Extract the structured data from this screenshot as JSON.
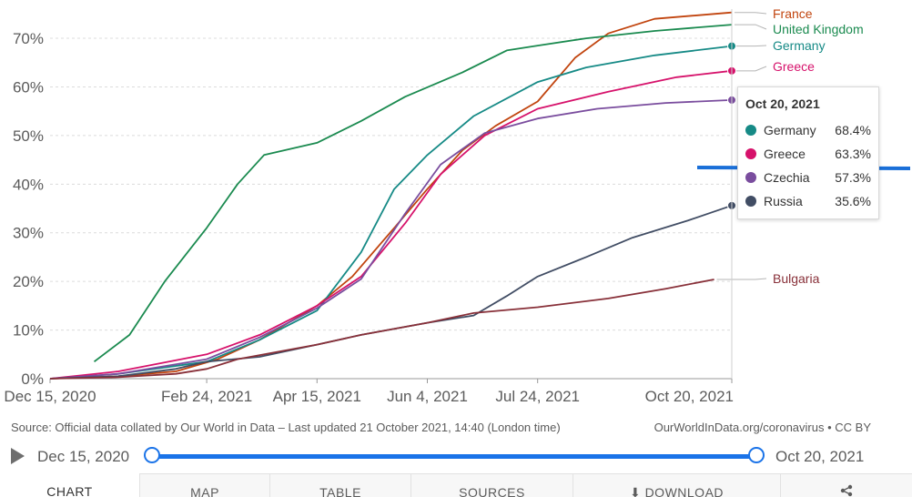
{
  "chart_data": {
    "type": "line",
    "y_ticks": [
      "0%",
      "10%",
      "20%",
      "30%",
      "40%",
      "50%",
      "60%",
      "70%"
    ],
    "x_ticks": [
      "Dec 15, 2020",
      "Feb 24, 2021",
      "Apr 15, 2021",
      "Jun 4, 2021",
      "Jul 24, 2021",
      "Oct 20, 2021"
    ],
    "ylim": [
      0,
      76
    ],
    "xlim": [
      "2020-12-15",
      "2021-10-20"
    ],
    "grid": "horizontal dashed",
    "series": [
      {
        "name": "France",
        "color": "#c1440e",
        "points": [
          [
            "2020-12-15",
            0
          ],
          [
            "2021-01-15",
            0.5
          ],
          [
            "2021-02-10",
            1.5
          ],
          [
            "2021-03-01",
            4
          ],
          [
            "2021-03-20",
            8
          ],
          [
            "2021-04-15",
            15
          ],
          [
            "2021-05-01",
            21
          ],
          [
            "2021-05-20",
            31
          ],
          [
            "2021-06-04",
            39
          ],
          [
            "2021-06-20",
            47
          ],
          [
            "2021-07-05",
            52
          ],
          [
            "2021-07-24",
            57
          ],
          [
            "2021-08-10",
            66
          ],
          [
            "2021-08-25",
            71
          ],
          [
            "2021-09-15",
            74
          ],
          [
            "2021-10-20",
            75.3
          ]
        ]
      },
      {
        "name": "United Kingdom",
        "color": "#1a8a4f",
        "points": [
          [
            "2021-01-04",
            3.5
          ],
          [
            "2021-01-20",
            9
          ],
          [
            "2021-02-05",
            20
          ],
          [
            "2021-02-24",
            31
          ],
          [
            "2021-03-10",
            40
          ],
          [
            "2021-03-22",
            46
          ],
          [
            "2021-04-15",
            48.5
          ],
          [
            "2021-05-05",
            53
          ],
          [
            "2021-05-25",
            58
          ],
          [
            "2021-06-20",
            63
          ],
          [
            "2021-07-10",
            67.5
          ],
          [
            "2021-07-24",
            68.5
          ],
          [
            "2021-08-15",
            70
          ],
          [
            "2021-09-15",
            71.5
          ],
          [
            "2021-10-20",
            72.8
          ]
        ]
      },
      {
        "name": "Germany",
        "color": "#168a86",
        "points": [
          [
            "2020-12-15",
            0
          ],
          [
            "2021-01-15",
            1
          ],
          [
            "2021-02-24",
            3.5
          ],
          [
            "2021-03-20",
            8
          ],
          [
            "2021-04-15",
            14
          ],
          [
            "2021-05-05",
            26
          ],
          [
            "2021-05-20",
            39
          ],
          [
            "2021-06-04",
            46
          ],
          [
            "2021-06-25",
            54
          ],
          [
            "2021-07-24",
            61
          ],
          [
            "2021-08-15",
            64
          ],
          [
            "2021-09-15",
            66.5
          ],
          [
            "2021-10-20",
            68.4
          ]
        ]
      },
      {
        "name": "Greece",
        "color": "#d6126b",
        "points": [
          [
            "2020-12-15",
            0
          ],
          [
            "2021-01-15",
            1.5
          ],
          [
            "2021-02-24",
            5
          ],
          [
            "2021-03-20",
            9
          ],
          [
            "2021-04-15",
            15
          ],
          [
            "2021-05-05",
            21
          ],
          [
            "2021-05-25",
            32
          ],
          [
            "2021-06-10",
            42
          ],
          [
            "2021-06-30",
            50
          ],
          [
            "2021-07-24",
            55.5
          ],
          [
            "2021-08-25",
            59
          ],
          [
            "2021-09-25",
            62
          ],
          [
            "2021-10-20",
            63.3
          ]
        ]
      },
      {
        "name": "Czechia",
        "color": "#7a4d9e",
        "points": [
          [
            "2020-12-15",
            0
          ],
          [
            "2021-01-15",
            1
          ],
          [
            "2021-02-24",
            4
          ],
          [
            "2021-03-20",
            8.5
          ],
          [
            "2021-04-15",
            14.5
          ],
          [
            "2021-05-05",
            20.5
          ],
          [
            "2021-05-25",
            34
          ],
          [
            "2021-06-10",
            44
          ],
          [
            "2021-06-30",
            50.5
          ],
          [
            "2021-07-24",
            53.5
          ],
          [
            "2021-08-20",
            55.5
          ],
          [
            "2021-09-20",
            56.7
          ],
          [
            "2021-10-20",
            57.3
          ]
        ]
      },
      {
        "name": "Russia",
        "color": "#414d64",
        "points": [
          [
            "2020-12-15",
            0
          ],
          [
            "2021-01-15",
            0.5
          ],
          [
            "2021-02-10",
            2
          ],
          [
            "2021-02-24",
            3.5
          ],
          [
            "2021-03-20",
            4.5
          ],
          [
            "2021-04-15",
            7
          ],
          [
            "2021-05-05",
            9
          ],
          [
            "2021-06-04",
            11.5
          ],
          [
            "2021-06-25",
            13
          ],
          [
            "2021-07-10",
            17
          ],
          [
            "2021-07-24",
            21
          ],
          [
            "2021-08-15",
            25
          ],
          [
            "2021-09-05",
            29
          ],
          [
            "2021-09-30",
            32.5
          ],
          [
            "2021-10-20",
            35.6
          ]
        ]
      },
      {
        "name": "Bulgaria",
        "color": "#883039",
        "points": [
          [
            "2020-12-15",
            0
          ],
          [
            "2021-01-15",
            0.3
          ],
          [
            "2021-02-10",
            1
          ],
          [
            "2021-02-24",
            2
          ],
          [
            "2021-03-10",
            4
          ],
          [
            "2021-04-15",
            7
          ],
          [
            "2021-05-05",
            9
          ],
          [
            "2021-06-04",
            11.5
          ],
          [
            "2021-06-25",
            13.5
          ],
          [
            "2021-07-24",
            14.7
          ],
          [
            "2021-08-25",
            16.5
          ],
          [
            "2021-09-20",
            18.5
          ],
          [
            "2021-10-12",
            20.4
          ]
        ]
      }
    ],
    "line_labels": [
      "France",
      "United Kingdom",
      "Germany",
      "Greece",
      "Bulgaria"
    ]
  },
  "tooltip": {
    "date": "Oct 20, 2021",
    "rows": [
      {
        "name": "Germany",
        "value": "68.4%",
        "color": "#168a86"
      },
      {
        "name": "Greece",
        "value": "63.3%",
        "color": "#d6126b"
      },
      {
        "name": "Czechia",
        "value": "57.3%",
        "color": "#7a4d9e"
      },
      {
        "name": "Russia",
        "value": "35.6%",
        "color": "#414d64"
      }
    ]
  },
  "source": {
    "text": "Source: Official data collated by Our World in Data – Last updated 21 October 2021, 14:40 (London time)",
    "right": "OurWorldInData.org/coronavirus • CC BY"
  },
  "timeline": {
    "start": "Dec 15, 2020",
    "end": "Oct 20, 2021",
    "accent": "#1a73e8"
  },
  "tabs": [
    "CHART",
    "MAP",
    "TABLE",
    "SOURCES",
    "⬇ DOWNLOAD",
    "share-icon"
  ]
}
